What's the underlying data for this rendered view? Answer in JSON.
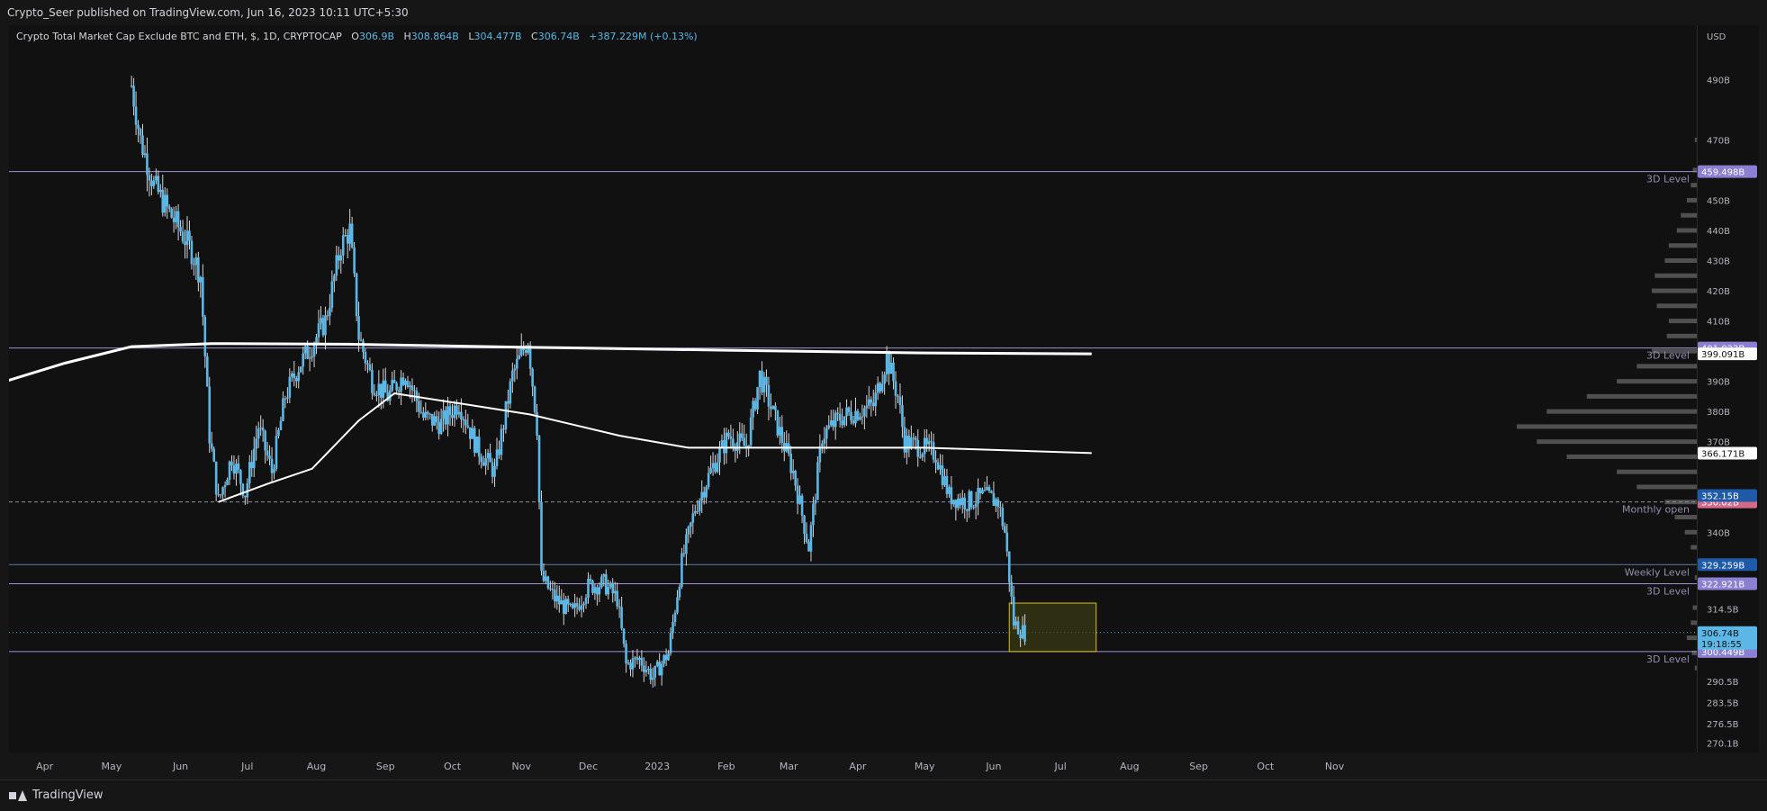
{
  "header": {
    "publisher_line": "Crypto_Seer published on TradingView.com, Jun 16, 2023 10:11 UTC+5:30"
  },
  "legend": {
    "symbol": "Crypto Total Market Cap Exclude BTC and ETH, $, 1D, CRYPTOCAP",
    "o_label": "O",
    "o": "306.9B",
    "h_label": "H",
    "h": "308.864B",
    "l_label": "L",
    "l": "304.477B",
    "c_label": "C",
    "c": "306.74B",
    "change": "+387.229M (+0.13%)"
  },
  "footer": {
    "brand": "TradingView"
  },
  "colors": {
    "background": "#111111",
    "candle": "#5bb8e6",
    "wick": "#d1d4dc",
    "level_line": "#9c92d6",
    "weekly_line": "#5b7ea6",
    "ma": "#ffffff",
    "box_border": "#d8c020",
    "box_fill": "#3a3a12",
    "vp": "#5c5c5c"
  },
  "chart_data": {
    "type": "candlestick",
    "currency": "USD",
    "ylim": [
      267,
      508
    ],
    "y_ticks": [
      "490B",
      "470B",
      "450B",
      "440B",
      "430B",
      "420B",
      "410B",
      "390B",
      "380B",
      "370B",
      "340B",
      "314.5B",
      "290.5B",
      "283.5B",
      "276.5B",
      "270.1B"
    ],
    "x_ticks": [
      "Apr",
      "May",
      "Jun",
      "Jul",
      "Aug",
      "Sep",
      "Oct",
      "Nov",
      "Dec",
      "2023",
      "Feb",
      "Mar",
      "Apr",
      "May",
      "Jun",
      "Jul",
      "Aug",
      "Sep",
      "Oct",
      "Nov"
    ],
    "price_series": [
      {
        "date": "2022-05-10",
        "value": 488
      },
      {
        "date": "2022-05-14",
        "value": 470
      },
      {
        "date": "2022-05-20",
        "value": 455
      },
      {
        "date": "2022-05-26",
        "value": 447
      },
      {
        "date": "2022-06-01",
        "value": 440
      },
      {
        "date": "2022-06-06",
        "value": 433
      },
      {
        "date": "2022-06-10",
        "value": 425
      },
      {
        "date": "2022-06-14",
        "value": 372
      },
      {
        "date": "2022-06-18",
        "value": 350
      },
      {
        "date": "2022-06-24",
        "value": 365
      },
      {
        "date": "2022-06-30",
        "value": 353
      },
      {
        "date": "2022-07-06",
        "value": 375
      },
      {
        "date": "2022-07-12",
        "value": 360
      },
      {
        "date": "2022-07-18",
        "value": 385
      },
      {
        "date": "2022-07-24",
        "value": 395
      },
      {
        "date": "2022-07-30",
        "value": 402
      },
      {
        "date": "2022-08-05",
        "value": 410
      },
      {
        "date": "2022-08-12",
        "value": 435
      },
      {
        "date": "2022-08-16",
        "value": 440
      },
      {
        "date": "2022-08-20",
        "value": 405
      },
      {
        "date": "2022-08-26",
        "value": 390
      },
      {
        "date": "2022-09-02",
        "value": 385
      },
      {
        "date": "2022-09-10",
        "value": 393
      },
      {
        "date": "2022-09-18",
        "value": 378
      },
      {
        "date": "2022-09-26",
        "value": 376
      },
      {
        "date": "2022-10-04",
        "value": 383
      },
      {
        "date": "2022-10-12",
        "value": 368
      },
      {
        "date": "2022-10-20",
        "value": 360
      },
      {
        "date": "2022-10-28",
        "value": 392
      },
      {
        "date": "2022-11-04",
        "value": 404
      },
      {
        "date": "2022-11-08",
        "value": 375
      },
      {
        "date": "2022-11-10",
        "value": 325
      },
      {
        "date": "2022-11-16",
        "value": 318
      },
      {
        "date": "2022-11-24",
        "value": 313
      },
      {
        "date": "2022-12-01",
        "value": 322
      },
      {
        "date": "2022-12-08",
        "value": 323
      },
      {
        "date": "2022-12-14",
        "value": 318
      },
      {
        "date": "2022-12-18",
        "value": 296
      },
      {
        "date": "2022-12-24",
        "value": 298
      },
      {
        "date": "2022-12-30",
        "value": 292
      },
      {
        "date": "2023-01-06",
        "value": 300
      },
      {
        "date": "2023-01-12",
        "value": 330
      },
      {
        "date": "2023-01-18",
        "value": 348
      },
      {
        "date": "2023-01-26",
        "value": 362
      },
      {
        "date": "2023-02-02",
        "value": 372
      },
      {
        "date": "2023-02-10",
        "value": 368
      },
      {
        "date": "2023-02-16",
        "value": 392
      },
      {
        "date": "2023-02-24",
        "value": 375
      },
      {
        "date": "2023-03-03",
        "value": 360
      },
      {
        "date": "2023-03-10",
        "value": 335
      },
      {
        "date": "2023-03-16",
        "value": 372
      },
      {
        "date": "2023-03-24",
        "value": 378
      },
      {
        "date": "2023-03-31",
        "value": 380
      },
      {
        "date": "2023-04-08",
        "value": 382
      },
      {
        "date": "2023-04-14",
        "value": 398
      },
      {
        "date": "2023-04-19",
        "value": 385
      },
      {
        "date": "2023-04-22",
        "value": 370
      },
      {
        "date": "2023-04-30",
        "value": 368
      },
      {
        "date": "2023-05-06",
        "value": 366
      },
      {
        "date": "2023-05-12",
        "value": 352
      },
      {
        "date": "2023-05-20",
        "value": 350
      },
      {
        "date": "2023-05-28",
        "value": 352
      },
      {
        "date": "2023-06-03",
        "value": 350
      },
      {
        "date": "2023-06-06",
        "value": 340
      },
      {
        "date": "2023-06-10",
        "value": 310
      },
      {
        "date": "2023-06-14",
        "value": 307
      },
      {
        "date": "2023-06-15",
        "value": 306.74
      }
    ],
    "moving_averages": [
      {
        "name": "long MA",
        "points": [
          {
            "date": "2022-03-10",
            "value": 389
          },
          {
            "date": "2022-04-10",
            "value": 396
          },
          {
            "date": "2022-05-10",
            "value": 401.5
          },
          {
            "date": "2022-06-15",
            "value": 402.5
          },
          {
            "date": "2022-08-15",
            "value": 402.3
          },
          {
            "date": "2022-11-01",
            "value": 401.3
          },
          {
            "date": "2023-02-01",
            "value": 400.3
          },
          {
            "date": "2023-05-01",
            "value": 399.4
          },
          {
            "date": "2023-07-15",
            "value": 399.1
          }
        ]
      },
      {
        "name": "short MA",
        "points": [
          {
            "date": "2022-06-18",
            "value": 350
          },
          {
            "date": "2022-07-10",
            "value": 356
          },
          {
            "date": "2022-07-30",
            "value": 361
          },
          {
            "date": "2022-08-20",
            "value": 377
          },
          {
            "date": "2022-09-05",
            "value": 386
          },
          {
            "date": "2022-10-10",
            "value": 382
          },
          {
            "date": "2022-11-05",
            "value": 379
          },
          {
            "date": "2022-12-15",
            "value": 372
          },
          {
            "date": "2023-01-15",
            "value": 368
          },
          {
            "date": "2023-03-01",
            "value": 368
          },
          {
            "date": "2023-05-01",
            "value": 368
          },
          {
            "date": "2023-07-15",
            "value": 366.2
          }
        ]
      }
    ],
    "levels": [
      {
        "value": 459.498,
        "label": "3D Level",
        "price_label": "459.498B",
        "style": "solid",
        "color": "#9c92d6"
      },
      {
        "value": 401.022,
        "label": "3D Level",
        "price_label": "401.022B",
        "style": "solid",
        "color": "#9c92d6"
      },
      {
        "value": 350.02,
        "label": "Monthly open",
        "price_label": "350.02B",
        "style": "dashed",
        "color": "#8a8fa6"
      },
      {
        "value": 329.259,
        "label": "Weekly Level",
        "price_label": "329.259B",
        "style": "solid",
        "color": "#5b7ea6"
      },
      {
        "value": 322.921,
        "label": "3D Level",
        "price_label": "322.921B",
        "style": "solid",
        "color": "#9c92d6"
      },
      {
        "value": 300.449,
        "label": "3D Level",
        "price_label": "300.449B",
        "style": "solid",
        "color": "#9c92d6"
      }
    ],
    "price_tags": [
      {
        "value": 399.091,
        "text": "399.091B",
        "bg": "#ffffff",
        "fg": "#111111"
      },
      {
        "value": 366.171,
        "text": "366.171B",
        "bg": "#ffffff",
        "fg": "#111111"
      },
      {
        "value": 352.15,
        "text": "352.15B",
        "bg": "#1f5aa8",
        "fg": "#ffffff"
      },
      {
        "value": 306.74,
        "text": "306.74B",
        "text2": "19:18:55",
        "bg": "#5bb8e6",
        "fg": "#111111"
      }
    ],
    "current_price": 306.74,
    "highlight_box": {
      "x0": "2023-06-08",
      "x1": "2023-07-17",
      "y0": 300.449,
      "y1": 316.5
    },
    "volume_profile": [
      [
        325,
        2
      ],
      [
        315,
        4
      ],
      [
        310,
        6
      ],
      [
        305,
        10
      ],
      [
        300,
        5
      ],
      [
        295,
        2
      ],
      [
        335,
        6
      ],
      [
        340,
        12
      ],
      [
        345,
        22
      ],
      [
        350,
        32
      ],
      [
        355,
        60
      ],
      [
        360,
        80
      ],
      [
        365,
        130
      ],
      [
        370,
        160
      ],
      [
        375,
        180
      ],
      [
        380,
        150
      ],
      [
        385,
        110
      ],
      [
        390,
        80
      ],
      [
        395,
        60
      ],
      [
        400,
        45
      ],
      [
        405,
        30
      ],
      [
        410,
        28
      ],
      [
        415,
        40
      ],
      [
        420,
        45
      ],
      [
        425,
        42
      ],
      [
        430,
        32
      ],
      [
        435,
        28
      ],
      [
        440,
        20
      ],
      [
        445,
        16
      ],
      [
        450,
        10
      ],
      [
        455,
        6
      ],
      [
        460,
        4
      ],
      [
        470,
        2
      ]
    ]
  }
}
